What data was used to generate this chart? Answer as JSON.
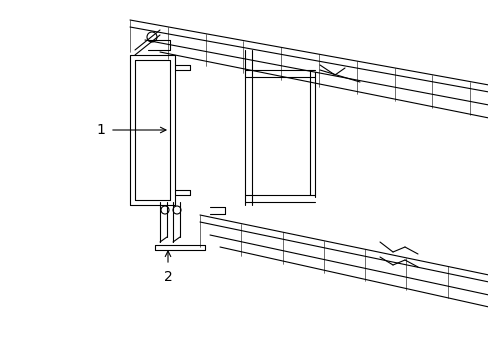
{
  "bg_color": "#ffffff",
  "line_color": "#000000",
  "hatch_color": "#888888",
  "label1": "1",
  "label2": "2",
  "figsize": [
    4.89,
    3.6
  ],
  "dpi": 100
}
